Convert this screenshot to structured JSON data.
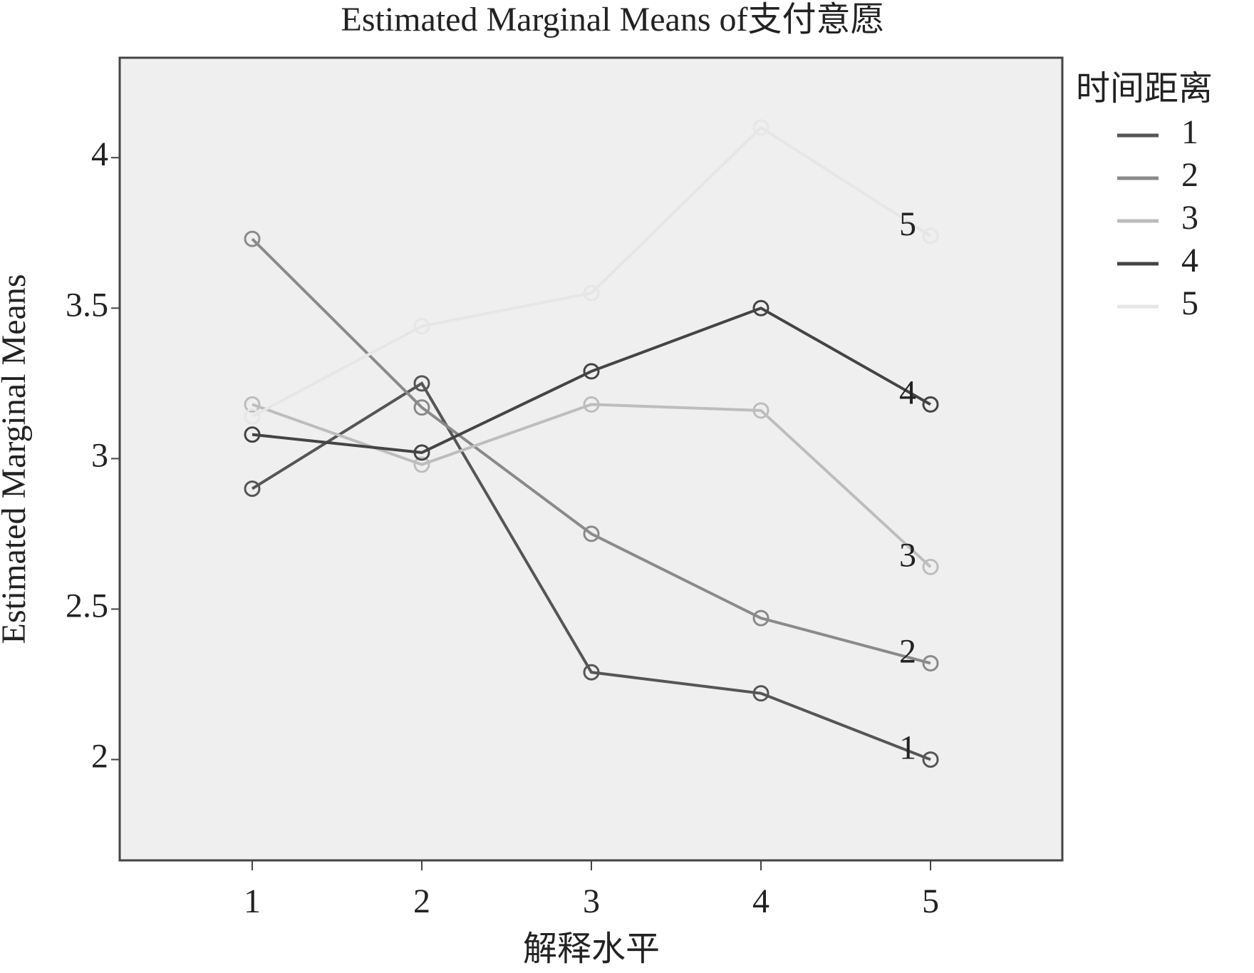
{
  "chart_data": {
    "type": "line",
    "title": "Estimated Marginal Means of支付意愿",
    "x_label": "解释水平",
    "y_label": "Estimated Marginal Means",
    "legend_title": "时间距离",
    "categories": [
      "1",
      "2",
      "3",
      "4",
      "5"
    ],
    "series": [
      {
        "name": "1",
        "color": "#555555",
        "values": [
          2.9,
          3.25,
          2.29,
          2.22,
          2.0
        ]
      },
      {
        "name": "2",
        "color": "#8a8a8a",
        "values": [
          3.73,
          3.17,
          2.75,
          2.47,
          2.32
        ]
      },
      {
        "name": "3",
        "color": "#bdbdbd",
        "values": [
          3.18,
          2.98,
          3.18,
          3.16,
          2.64
        ]
      },
      {
        "name": "4",
        "color": "#444444",
        "values": [
          3.08,
          3.02,
          3.29,
          3.5,
          3.18
        ]
      },
      {
        "name": "5",
        "color": "#e6e6e6",
        "values": [
          3.14,
          3.44,
          3.55,
          4.1,
          3.74
        ]
      }
    ],
    "ylim": [
      1.665,
      4.332
    ],
    "yticks": [
      2,
      2.5,
      3,
      3.5,
      4
    ],
    "legend_position": "right"
  }
}
